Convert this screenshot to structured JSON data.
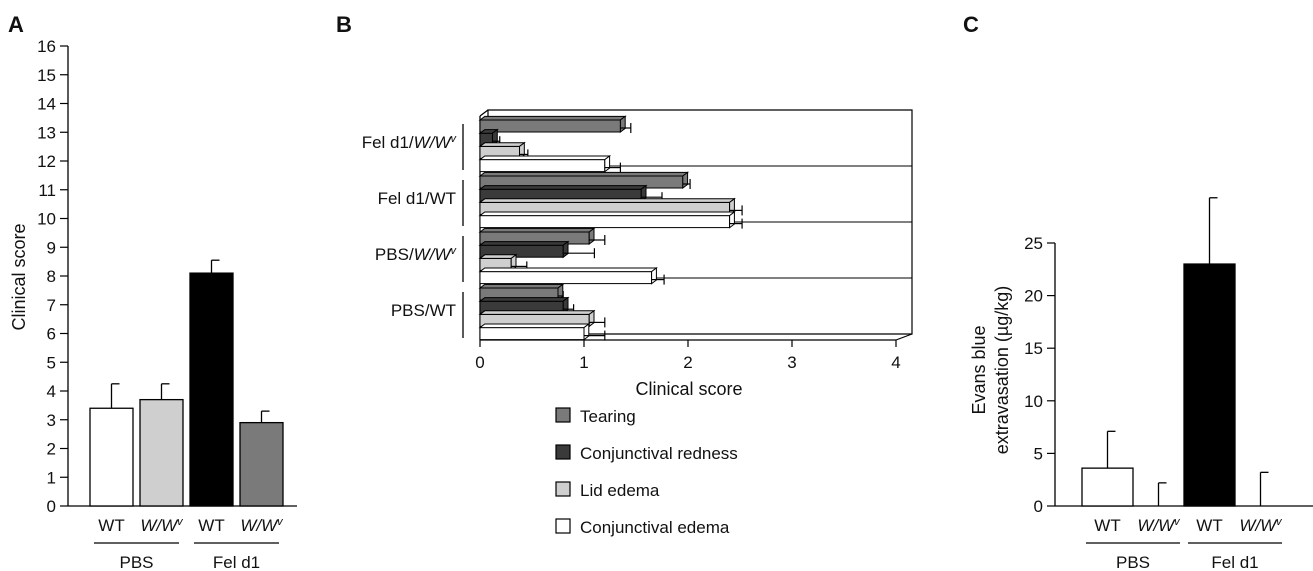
{
  "colors": {
    "white": "#ffffff",
    "light_gray": "#cfcfcf",
    "black": "#000000",
    "dark_gray": "#7a7a7a",
    "tearing": "#7a7a7a",
    "redness": "#3a3a3a",
    "lid_edema": "#cfcfcf",
    "conj_edema": "#ffffff"
  },
  "panels": {
    "a": {
      "letter": "A"
    },
    "b": {
      "letter": "B"
    },
    "c": {
      "letter": "C"
    }
  },
  "chart_data": [
    {
      "id": "A",
      "type": "bar",
      "ylabel": "Clinical score",
      "ylim": [
        0,
        16
      ],
      "yticks": [
        0,
        1,
        2,
        3,
        4,
        5,
        6,
        7,
        8,
        9,
        10,
        11,
        12,
        13,
        14,
        15,
        16
      ],
      "bars": [
        {
          "label": "WT",
          "label_style": "normal",
          "group": "PBS",
          "value": 3.4,
          "error": 0.85,
          "color": "#ffffff"
        },
        {
          "label": "W/W",
          "label_sup": "v",
          "label_style": "italic",
          "group": "PBS",
          "value": 3.7,
          "error": 0.55,
          "color": "#cfcfcf"
        },
        {
          "label": "WT",
          "label_style": "normal",
          "group": "Fel d1",
          "value": 8.1,
          "error": 0.45,
          "color": "#000000"
        },
        {
          "label": "W/W",
          "label_sup": "v",
          "label_style": "italic",
          "group": "Fel d1",
          "value": 2.9,
          "error": 0.4,
          "color": "#7a7a7a"
        }
      ],
      "groups": [
        "PBS",
        "Fel d1"
      ]
    },
    {
      "id": "B",
      "type": "bar",
      "orientation": "horizontal",
      "xlabel": "Clinical score",
      "xlim": [
        0,
        4
      ],
      "xticks": [
        0,
        1,
        2,
        3,
        4
      ],
      "categories": [
        {
          "text": "Fel d1/",
          "ital": "W/W",
          "sup": "v"
        },
        {
          "text": "Fel d1/WT",
          "ital": "",
          "sup": ""
        },
        {
          "text": "PBS/",
          "ital": "W/W",
          "sup": "v"
        },
        {
          "text": "PBS/WT",
          "ital": "",
          "sup": ""
        }
      ],
      "series": [
        {
          "name": "Tearing",
          "color": "#7a7a7a",
          "values": [
            1.35,
            1.95,
            1.05,
            0.75
          ],
          "errors": [
            0.1,
            0.07,
            0.15,
            0.05
          ]
        },
        {
          "name": "Conjunctival redness",
          "color": "#3a3a3a",
          "values": [
            0.12,
            1.55,
            0.8,
            0.8
          ],
          "errors": [
            0.07,
            0.2,
            0.3,
            0.1
          ]
        },
        {
          "name": "Lid edema",
          "color": "#cfcfcf",
          "values": [
            0.38,
            2.4,
            0.3,
            1.05
          ],
          "errors": [
            0.08,
            0.12,
            0.15,
            0.15
          ]
        },
        {
          "name": "Conjunctival edema",
          "color": "#ffffff",
          "values": [
            1.2,
            2.4,
            1.65,
            1.0
          ],
          "errors": [
            0.15,
            0.12,
            0.12,
            0.2
          ]
        }
      ],
      "legend": "below"
    },
    {
      "id": "C",
      "type": "bar",
      "ylabel": [
        "Evans blue",
        "extravasation (µg/kg)"
      ],
      "ylim": [
        0,
        25
      ],
      "yticks": [
        0,
        5,
        10,
        15,
        20,
        25
      ],
      "bars": [
        {
          "label": "WT",
          "label_style": "normal",
          "group": "PBS",
          "value": 3.6,
          "error": 3.5,
          "color": "#ffffff"
        },
        {
          "label": "W/W",
          "label_sup": "v",
          "label_style": "italic",
          "group": "PBS",
          "value": 0.0,
          "error": 2.2,
          "color": "#cfcfcf"
        },
        {
          "label": "WT",
          "label_style": "normal",
          "group": "Fel d1",
          "value": 23.0,
          "error": 6.3,
          "color": "#000000"
        },
        {
          "label": "W/W",
          "label_sup": "v",
          "label_style": "italic",
          "group": "Fel d1",
          "value": 0.0,
          "error": 3.2,
          "color": "#7a7a7a"
        }
      ],
      "groups": [
        "PBS",
        "Fel d1"
      ]
    }
  ]
}
